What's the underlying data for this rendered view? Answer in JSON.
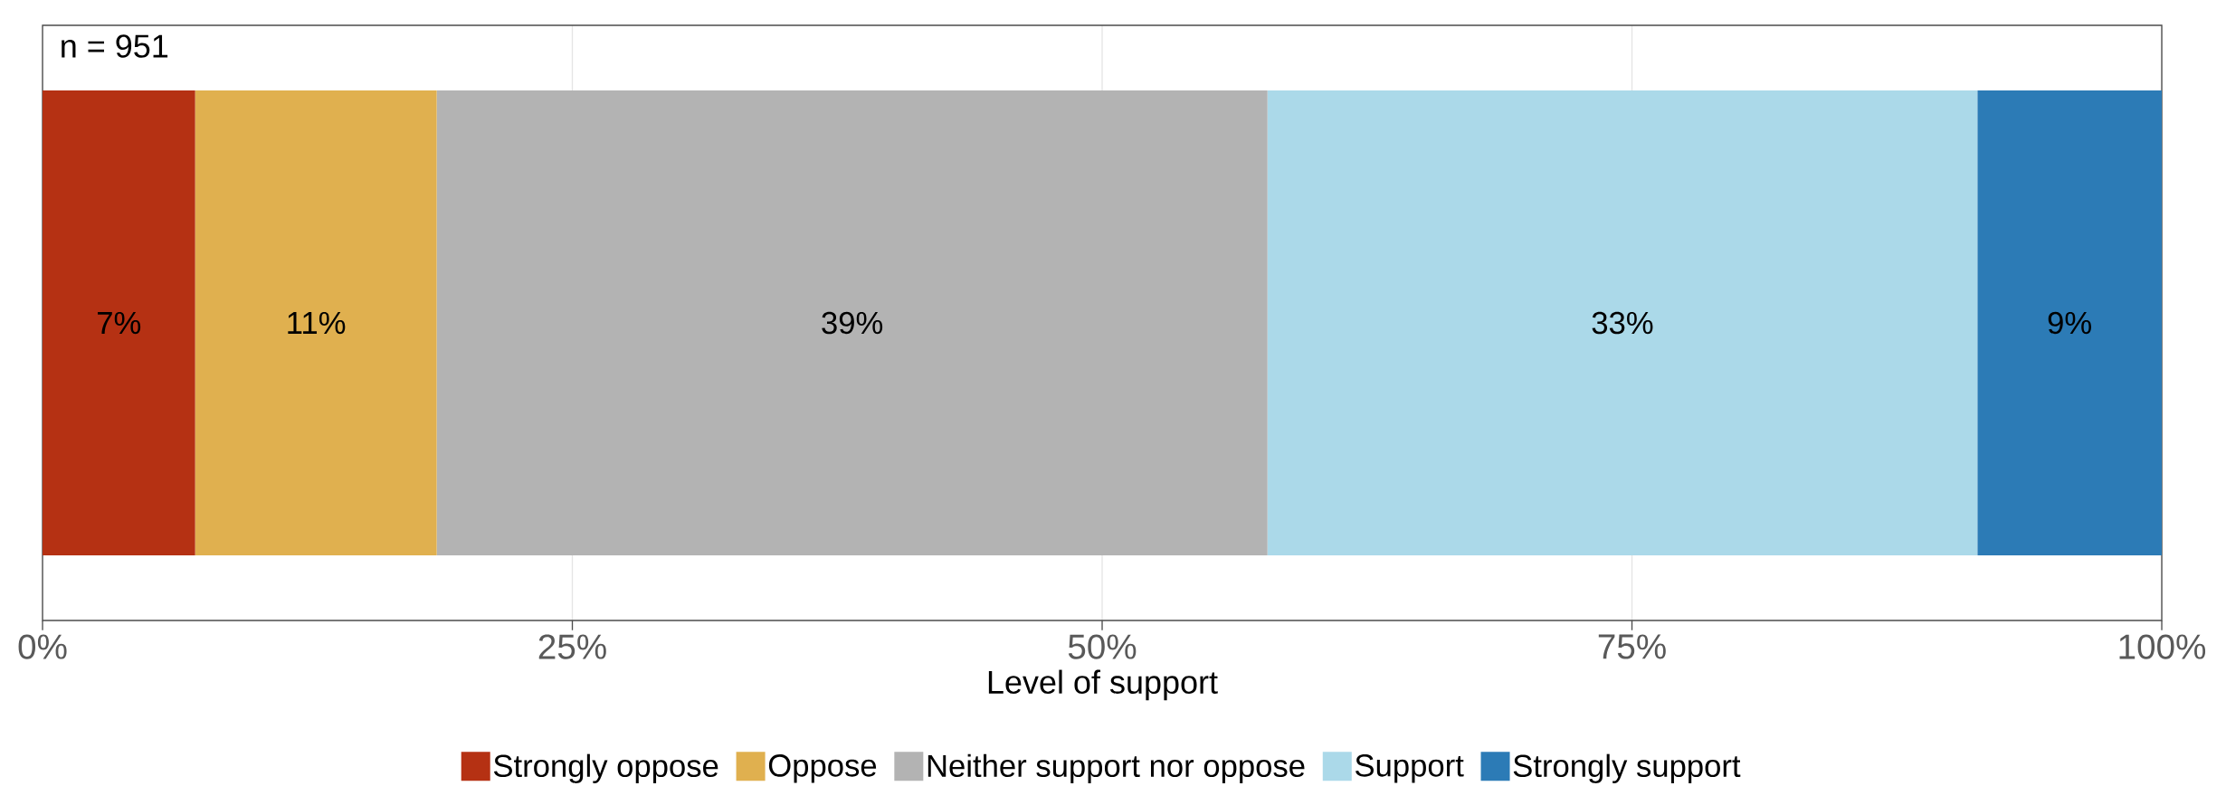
{
  "chart_data": {
    "type": "bar",
    "orientation": "horizontal",
    "stacked": true,
    "categories": [
      null
    ],
    "series": [
      {
        "name": "Strongly oppose",
        "color": "#b53113",
        "values": [
          7.2
        ],
        "value_labels": [
          "7%"
        ]
      },
      {
        "name": "Oppose",
        "color": "#e0b04f",
        "values": [
          11.4
        ],
        "value_labels": [
          "11%"
        ]
      },
      {
        "name": "Neither support nor oppose",
        "color": "#b3b3b3",
        "values": [
          39.2
        ],
        "value_labels": [
          "39%"
        ]
      },
      {
        "name": "Support",
        "color": "#abd9e9",
        "values": [
          33.5
        ],
        "value_labels": [
          "33%"
        ]
      },
      {
        "name": "Strongly support",
        "color": "#2c7bb6",
        "values": [
          8.7
        ],
        "value_labels": [
          "9%"
        ]
      }
    ],
    "xlim": [
      0,
      100
    ],
    "xticks": [
      {
        "value": 0,
        "label": "0%"
      },
      {
        "value": 25,
        "label": "25%"
      },
      {
        "value": 50,
        "label": "50%"
      },
      {
        "value": 75,
        "label": "75%"
      },
      {
        "value": 100,
        "label": "100%"
      }
    ],
    "xlabel": "Level of support",
    "annotations": [
      "n = 951"
    ],
    "grid": "x",
    "legend": "bottom",
    "tick_labels": "x"
  }
}
